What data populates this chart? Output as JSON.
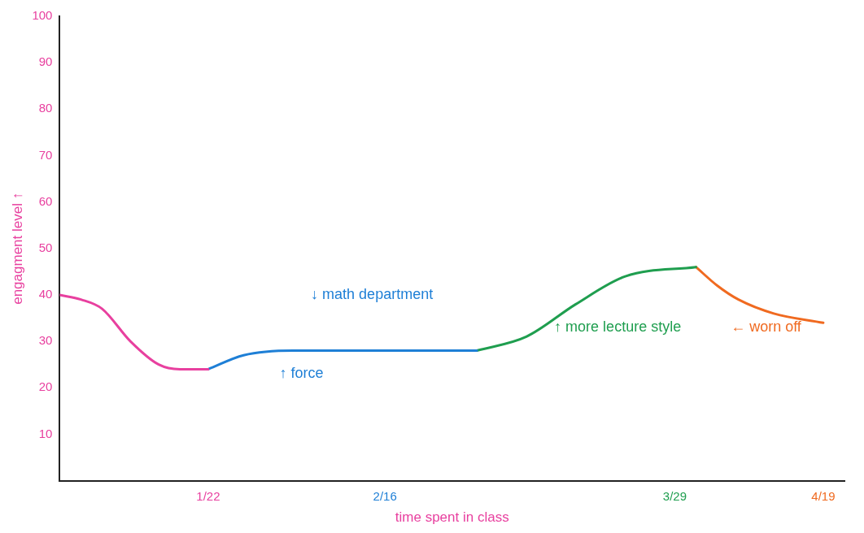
{
  "chart_data": {
    "type": "line",
    "xlabel": "time spent in class",
    "ylabel": "engagment level ↑",
    "xlim": [
      "--01-01",
      "--04-22"
    ],
    "ylim": [
      0,
      100
    ],
    "xticks": [
      {
        "value": "--01-22",
        "label": "1/22"
      },
      {
        "value": "--02-16",
        "label": "2/16"
      },
      {
        "value": "--03-29",
        "label": "3/29"
      },
      {
        "value": "--04-19",
        "label": "4/19"
      }
    ],
    "yticks": [
      10,
      20,
      30,
      40,
      50,
      60,
      70,
      80,
      90,
      100
    ],
    "grid": false,
    "legend": false,
    "marker": "none",
    "line_style": "solid",
    "series": [
      {
        "color": "#e8409f",
        "x": [
          "--01-01",
          "--01-04",
          "--01-07",
          "--01-11",
          "--01-15",
          "--01-18",
          "--01-22"
        ],
        "values": [
          40,
          39,
          37,
          30,
          25,
          24,
          24
        ]
      },
      {
        "color": "#1e7fd6",
        "x": [
          "--01-22",
          "--01-27",
          "--02-03",
          "--02-10",
          "--02-16",
          "--02-23",
          "--03-01"
        ],
        "values": [
          24,
          27,
          28,
          28,
          28,
          28,
          28
        ]
      },
      {
        "color": "#1f9e4f",
        "x": [
          "--03-01",
          "--03-08",
          "--03-15",
          "--03-22",
          "--04-01"
        ],
        "values": [
          28,
          31,
          38,
          44,
          46
        ]
      },
      {
        "color": "#f06a20",
        "x": [
          "--04-01",
          "--04-04",
          "--04-07",
          "--04-12",
          "--04-19"
        ],
        "values": [
          46,
          42,
          39,
          36,
          34
        ]
      }
    ],
    "annotations": [
      "↓ math department",
      "↑ force",
      "↑ more lecture style",
      "← worn off"
    ]
  }
}
